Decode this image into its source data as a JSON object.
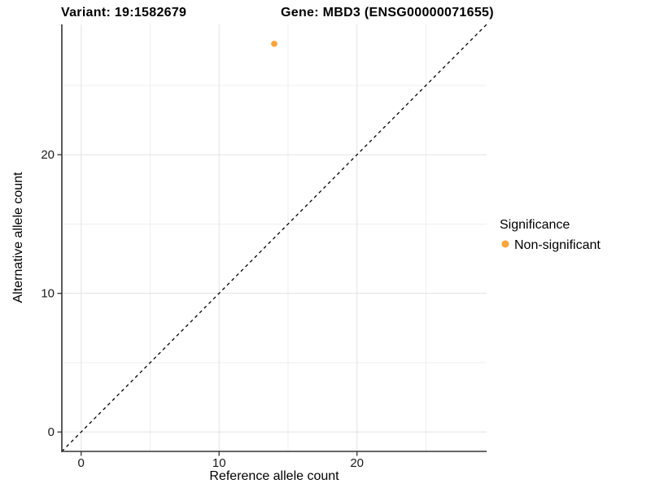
{
  "header": {
    "variant_title": "Variant: 19:1582679",
    "gene_title": "Gene: MBD3 (ENSG00000071655)"
  },
  "chart_data": {
    "type": "scatter",
    "xlabel": "Reference allele count",
    "ylabel": "Alternative allele count",
    "xlim": [
      -1.4,
      29.4
    ],
    "ylim": [
      -1.4,
      29.4
    ],
    "x_major_ticks": [
      0,
      10,
      20
    ],
    "y_major_ticks": [
      0,
      10,
      20
    ],
    "x_minor_ticks": [
      5,
      15,
      25
    ],
    "y_minor_ticks": [
      5,
      15,
      25
    ],
    "grid": "major+minor",
    "identity_line": {
      "style": "dashed",
      "color": "#000000",
      "from": [
        -1.4,
        -1.4
      ],
      "to": [
        29.4,
        29.4
      ]
    },
    "series": [
      {
        "name": "Non-significant",
        "color": "#FAA43A",
        "points": [
          {
            "x": 14,
            "y": 28
          }
        ]
      }
    ],
    "legend_position": "right"
  },
  "legend": {
    "title": "Significance",
    "items": [
      {
        "label": "Non-significant",
        "color": "#FAA43A"
      }
    ]
  },
  "colors": {
    "axis_line": "#333333",
    "tick_mark": "#333333",
    "grid_major": "#e3e3e3",
    "grid_minor": "#efefef",
    "point": "#FAA43A",
    "background": "#ffffff"
  }
}
